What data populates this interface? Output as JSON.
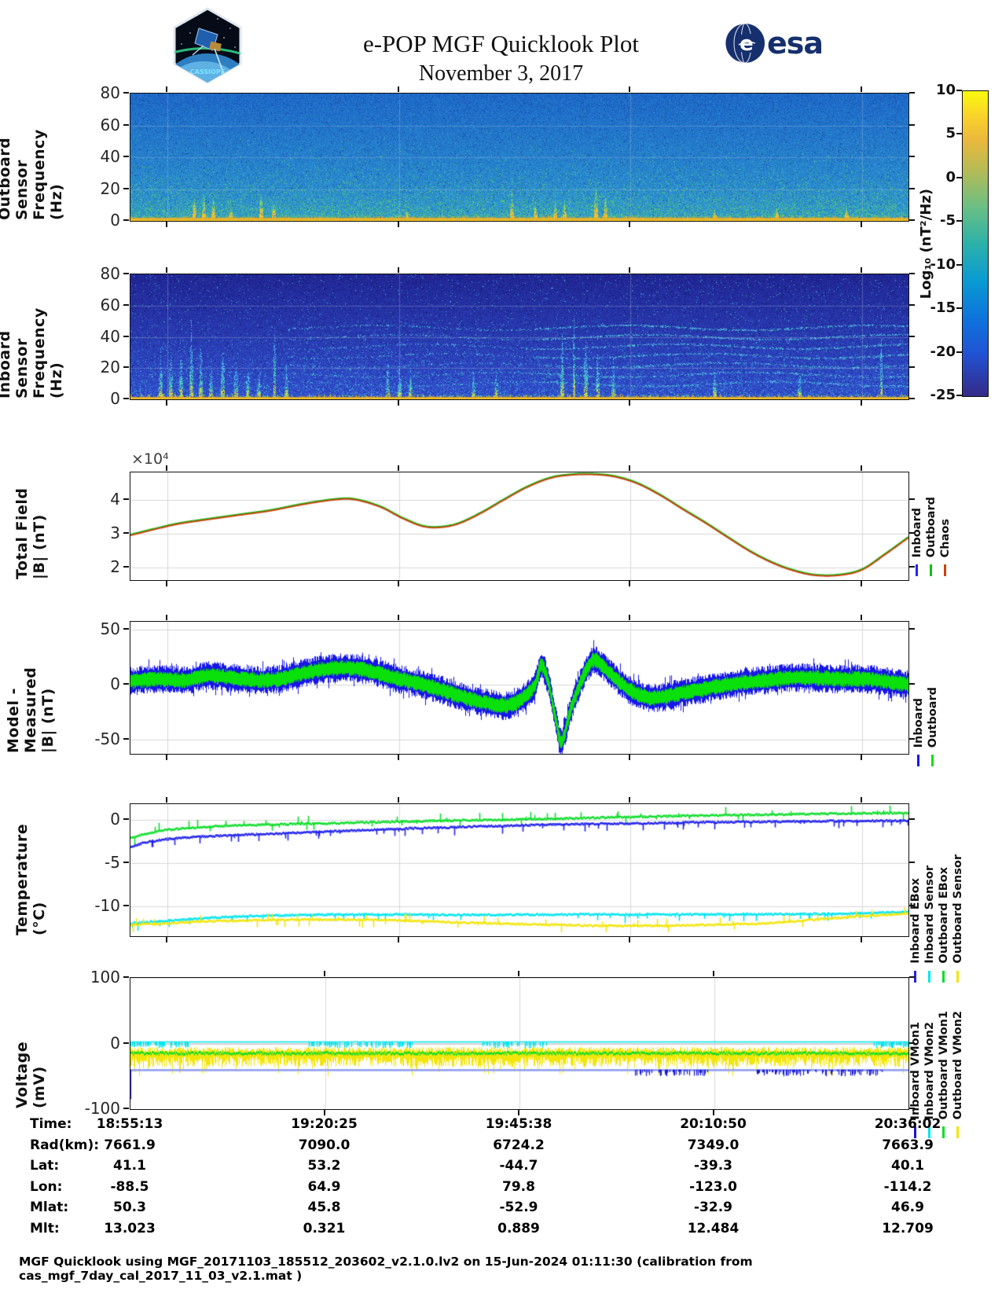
{
  "header": {
    "title": "e-POP MGF Quicklook Plot",
    "date": "November 3, 2017",
    "mission_logo": "cassiope-epop-mission-patch",
    "mission_logo_text": "CASSIOPE",
    "esa_logo_text": "esa"
  },
  "colorbar": {
    "label": "Log₁₀ (nT²/Hz)",
    "ticks": [
      "10",
      "5",
      "0",
      "-5",
      "-10",
      "-15",
      "-20",
      "-25"
    ],
    "range": [
      -25,
      10
    ],
    "colormap": "parula"
  },
  "chart_data": [
    {
      "id": "outboard-spectrogram",
      "type": "heatmap",
      "ylabel": [
        "Outboard Sensor",
        "Frequency (Hz)"
      ],
      "yticks": [
        "0",
        "20",
        "40",
        "60",
        "80"
      ],
      "ylim": [
        0,
        80
      ],
      "intensity_units": "Log10 (nT2/Hz)",
      "intensity_range": [
        -25,
        10
      ],
      "summary": "broadband blue background near -14, intense yellow band below ~3 Hz, impulsive broadband bursts",
      "burst_fracs": [
        {
          "t": 0.082,
          "h": 0.34
        },
        {
          "t": 0.094,
          "h": 0.3
        },
        {
          "t": 0.106,
          "h": 0.24
        },
        {
          "t": 0.128,
          "h": 0.16
        },
        {
          "t": 0.168,
          "h": 0.3
        },
        {
          "t": 0.184,
          "h": 0.22
        },
        {
          "t": 0.355,
          "h": 0.12
        },
        {
          "t": 0.49,
          "h": 0.4
        },
        {
          "t": 0.52,
          "h": 0.16
        },
        {
          "t": 0.545,
          "h": 0.24
        },
        {
          "t": 0.558,
          "h": 0.18
        },
        {
          "t": 0.598,
          "h": 0.46
        },
        {
          "t": 0.61,
          "h": 0.34
        },
        {
          "t": 0.75,
          "h": 0.1
        },
        {
          "t": 0.83,
          "h": 0.12
        },
        {
          "t": 0.92,
          "h": 0.13
        }
      ]
    },
    {
      "id": "inboard-spectrogram",
      "type": "heatmap",
      "ylabel": [
        "Inboard Sensor",
        "Frequency (Hz)"
      ],
      "yticks": [
        "0",
        "20",
        "40",
        "60",
        "80"
      ],
      "ylim": [
        0,
        80
      ],
      "intensity_units": "Log10 (nT2/Hz)",
      "intensity_range": [
        -25,
        10
      ],
      "summary": "dark blue background near -20 with cyan vertical streaks, rising arc structures, harmonic horizontal stripes on right half, yellow band below ~3 Hz",
      "streak_fracs": [
        {
          "t": 0.038,
          "h": 0.45
        },
        {
          "t": 0.052,
          "h": 0.62
        },
        {
          "t": 0.065,
          "h": 0.5
        },
        {
          "t": 0.078,
          "h": 0.66
        },
        {
          "t": 0.09,
          "h": 0.5
        },
        {
          "t": 0.103,
          "h": 0.4
        },
        {
          "t": 0.118,
          "h": 0.55
        },
        {
          "t": 0.135,
          "h": 0.45
        },
        {
          "t": 0.15,
          "h": 0.38
        },
        {
          "t": 0.165,
          "h": 0.32
        },
        {
          "t": 0.185,
          "h": 0.95
        },
        {
          "t": 0.2,
          "h": 0.3
        },
        {
          "t": 0.33,
          "h": 0.3
        },
        {
          "t": 0.345,
          "h": 0.34
        },
        {
          "t": 0.36,
          "h": 0.28
        },
        {
          "t": 0.44,
          "h": 0.25
        },
        {
          "t": 0.47,
          "h": 0.3
        },
        {
          "t": 0.555,
          "h": 0.6
        },
        {
          "t": 0.57,
          "h": 0.85
        },
        {
          "t": 0.585,
          "h": 0.7
        },
        {
          "t": 0.6,
          "h": 0.5
        },
        {
          "t": 0.62,
          "h": 0.4
        },
        {
          "t": 0.75,
          "h": 0.3
        },
        {
          "t": 0.86,
          "h": 0.25
        },
        {
          "t": 0.965,
          "h": 0.8
        }
      ],
      "stripe_rows_freq_hz": [
        10,
        16,
        22,
        28,
        34,
        40,
        46
      ]
    },
    {
      "id": "total-field",
      "type": "line",
      "ylabel": [
        "Total Field",
        "|B| (nT)"
      ],
      "scale_note": "×10⁴",
      "yticks": [
        "2",
        "3",
        "4"
      ],
      "ytick_vals": [
        2,
        3,
        4
      ],
      "ylim": [
        1.62,
        4.82
      ],
      "units": "nT x 10^4",
      "series": [
        {
          "name": "Inboard",
          "color": "#2222ff"
        },
        {
          "name": "Outboard",
          "color": "#10c010"
        },
        {
          "name": "Chaos",
          "color": "#cf3e0e"
        }
      ],
      "note": "all three curves overlap",
      "points": [
        [
          0,
          2.95
        ],
        [
          0.03,
          3.12
        ],
        [
          0.06,
          3.28
        ],
        [
          0.1,
          3.42
        ],
        [
          0.14,
          3.55
        ],
        [
          0.18,
          3.68
        ],
        [
          0.22,
          3.86
        ],
        [
          0.26,
          4.0
        ],
        [
          0.285,
          4.02
        ],
        [
          0.32,
          3.8
        ],
        [
          0.35,
          3.45
        ],
        [
          0.375,
          3.22
        ],
        [
          0.395,
          3.18
        ],
        [
          0.42,
          3.28
        ],
        [
          0.45,
          3.6
        ],
        [
          0.48,
          4.0
        ],
        [
          0.51,
          4.38
        ],
        [
          0.54,
          4.65
        ],
        [
          0.565,
          4.74
        ],
        [
          0.59,
          4.76
        ],
        [
          0.62,
          4.7
        ],
        [
          0.65,
          4.5
        ],
        [
          0.68,
          4.15
        ],
        [
          0.71,
          3.72
        ],
        [
          0.74,
          3.3
        ],
        [
          0.77,
          2.85
        ],
        [
          0.8,
          2.42
        ],
        [
          0.83,
          2.08
        ],
        [
          0.855,
          1.88
        ],
        [
          0.88,
          1.76
        ],
        [
          0.91,
          1.76
        ],
        [
          0.94,
          1.92
        ],
        [
          0.97,
          2.38
        ],
        [
          1,
          2.88
        ]
      ]
    },
    {
      "id": "model-minus-measured",
      "type": "line-band",
      "ylabel": [
        "Model - Measured",
        "|B| (nT)"
      ],
      "yticks": [
        "-50",
        "0",
        "50"
      ],
      "ytick_vals": [
        -50,
        0,
        50
      ],
      "ylim": [
        -63,
        57
      ],
      "series": [
        {
          "name": "Inboard",
          "color": "#1616e8",
          "half_width": 11
        },
        {
          "name": "Outboard",
          "color": "#0ae00a",
          "half_width": 6.2
        }
      ],
      "center_points": [
        [
          0,
          3
        ],
        [
          0.03,
          5
        ],
        [
          0.07,
          4
        ],
        [
          0.1,
          8
        ],
        [
          0.13,
          6
        ],
        [
          0.16,
          4
        ],
        [
          0.19,
          5
        ],
        [
          0.22,
          10
        ],
        [
          0.25,
          14
        ],
        [
          0.28,
          15
        ],
        [
          0.31,
          12
        ],
        [
          0.34,
          6
        ],
        [
          0.37,
          1
        ],
        [
          0.4,
          -5
        ],
        [
          0.43,
          -12
        ],
        [
          0.46,
          -17
        ],
        [
          0.485,
          -19
        ],
        [
          0.505,
          -12
        ],
        [
          0.52,
          0
        ],
        [
          0.528,
          17
        ],
        [
          0.536,
          5
        ],
        [
          0.545,
          -25
        ],
        [
          0.553,
          -52
        ],
        [
          0.558,
          -45
        ],
        [
          0.565,
          -25
        ],
        [
          0.575,
          -5
        ],
        [
          0.585,
          12
        ],
        [
          0.595,
          22
        ],
        [
          0.605,
          18
        ],
        [
          0.62,
          8
        ],
        [
          0.64,
          -4
        ],
        [
          0.66,
          -11
        ],
        [
          0.68,
          -12
        ],
        [
          0.7,
          -9
        ],
        [
          0.73,
          -5
        ],
        [
          0.76,
          -1
        ],
        [
          0.79,
          2
        ],
        [
          0.82,
          4
        ],
        [
          0.85,
          6
        ],
        [
          0.88,
          6
        ],
        [
          0.91,
          5
        ],
        [
          0.94,
          5
        ],
        [
          0.97,
          3
        ],
        [
          1,
          0
        ]
      ]
    },
    {
      "id": "temperature",
      "type": "line",
      "ylabel": [
        "Temperature",
        "(°C)"
      ],
      "yticks": [
        "0",
        "-5",
        "-10"
      ],
      "ytick_vals": [
        0,
        -5,
        -10
      ],
      "ylim": [
        -13.4,
        1.8
      ],
      "series": [
        {
          "name": "Inboard EBox",
          "color": "#2222ee",
          "points": [
            [
              0,
              -3.1
            ],
            [
              0.02,
              -2.6
            ],
            [
              0.05,
              -2.2
            ],
            [
              0.09,
              -1.95
            ],
            [
              0.14,
              -1.75
            ],
            [
              0.2,
              -1.55
            ],
            [
              0.27,
              -1.3
            ],
            [
              0.34,
              -1.05
            ],
            [
              0.42,
              -0.85
            ],
            [
              0.5,
              -0.65
            ],
            [
              0.58,
              -0.5
            ],
            [
              0.66,
              -0.4
            ],
            [
              0.74,
              -0.3
            ],
            [
              0.82,
              -0.22
            ],
            [
              0.9,
              -0.15
            ],
            [
              1,
              -0.1
            ]
          ]
        },
        {
          "name": "Inboard Sensor",
          "color": "#00e5ee",
          "points": [
            [
              0,
              -11.9
            ],
            [
              0.05,
              -11.6
            ],
            [
              0.1,
              -11.3
            ],
            [
              0.15,
              -11.1
            ],
            [
              0.2,
              -11.0
            ],
            [
              0.3,
              -10.9
            ],
            [
              0.45,
              -10.95
            ],
            [
              0.6,
              -10.9
            ],
            [
              0.75,
              -10.9
            ],
            [
              0.85,
              -10.85
            ],
            [
              0.93,
              -10.8
            ],
            [
              1,
              -10.6
            ]
          ]
        },
        {
          "name": "Outboard EBox",
          "color": "#0ddd2a",
          "points": [
            [
              0,
              -2.1
            ],
            [
              0.02,
              -1.6
            ],
            [
              0.05,
              -1.15
            ],
            [
              0.09,
              -0.85
            ],
            [
              0.14,
              -0.65
            ],
            [
              0.2,
              -0.5
            ],
            [
              0.27,
              -0.38
            ],
            [
              0.34,
              -0.22
            ],
            [
              0.42,
              -0.08
            ],
            [
              0.5,
              0.05
            ],
            [
              0.58,
              0.2
            ],
            [
              0.66,
              0.35
            ],
            [
              0.74,
              0.5
            ],
            [
              0.82,
              0.6
            ],
            [
              0.9,
              0.7
            ],
            [
              1,
              0.8
            ]
          ]
        },
        {
          "name": "Outboard Sensor",
          "color": "#f2e50a",
          "points": [
            [
              0,
              -12.1
            ],
            [
              0.05,
              -11.9
            ],
            [
              0.1,
              -11.7
            ],
            [
              0.15,
              -11.6
            ],
            [
              0.2,
              -11.5
            ],
            [
              0.28,
              -11.5
            ],
            [
              0.35,
              -11.6
            ],
            [
              0.42,
              -11.8
            ],
            [
              0.5,
              -12.0
            ],
            [
              0.58,
              -12.15
            ],
            [
              0.66,
              -12.2
            ],
            [
              0.74,
              -12.1
            ],
            [
              0.82,
              -11.9
            ],
            [
              0.88,
              -11.5
            ],
            [
              0.94,
              -11.1
            ],
            [
              1,
              -10.8
            ]
          ]
        }
      ]
    },
    {
      "id": "voltage",
      "type": "line-noise",
      "ylabel": [
        "Voltage",
        "(mV)"
      ],
      "yticks": [
        "-100",
        "0",
        "100"
      ],
      "ytick_vals": [
        -100,
        0,
        100
      ],
      "ylim": [
        -100,
        100
      ],
      "series": [
        {
          "name": "Inboard VMon1",
          "color": "#1818d8",
          "baseline": -40,
          "spike_to": -50
        },
        {
          "name": "Inboard VMon2",
          "color": "#00e5ee",
          "baseline": 3,
          "spike_to": -4
        },
        {
          "name": "Outboard VMon1",
          "color": "#0ddd2a",
          "baseline": -15,
          "spike_to": -21
        },
        {
          "name": "Outboard VMon2",
          "color": "#f2e50a",
          "baseline": -14,
          "band_top": -5,
          "band_bottom": -38
        }
      ]
    }
  ],
  "ephemeris_table": {
    "rows": [
      {
        "label": "Time:",
        "values": [
          "18:55:13",
          "19:20:25",
          "19:45:38",
          "20:10:50",
          "20:36:02"
        ]
      },
      {
        "label": "Rad(km):",
        "values": [
          "7661.9",
          "7090.0",
          "6724.2",
          "7349.0",
          "7663.9"
        ]
      },
      {
        "label": "Lat:",
        "values": [
          "41.1",
          "53.2",
          "-44.7",
          "-39.3",
          "40.1"
        ]
      },
      {
        "label": "Lon:",
        "values": [
          "-88.5",
          "64.9",
          "79.8",
          "-123.0",
          "-114.2"
        ]
      },
      {
        "label": "Mlat:",
        "values": [
          "50.3",
          "45.8",
          "-52.9",
          "-32.9",
          "46.9"
        ]
      },
      {
        "label": "Mlt:",
        "values": [
          "13.023",
          "0.321",
          "0.889",
          "12.484",
          "12.709"
        ]
      }
    ]
  },
  "footer": {
    "text": "MGF Quicklook using MGF_20171103_185512_203602_v2.1.0.lv2 on 15-Jun-2024 01:11:30 (calibration from cas_mgf_7day_cal_2017_11_03_v2.1.mat )"
  }
}
